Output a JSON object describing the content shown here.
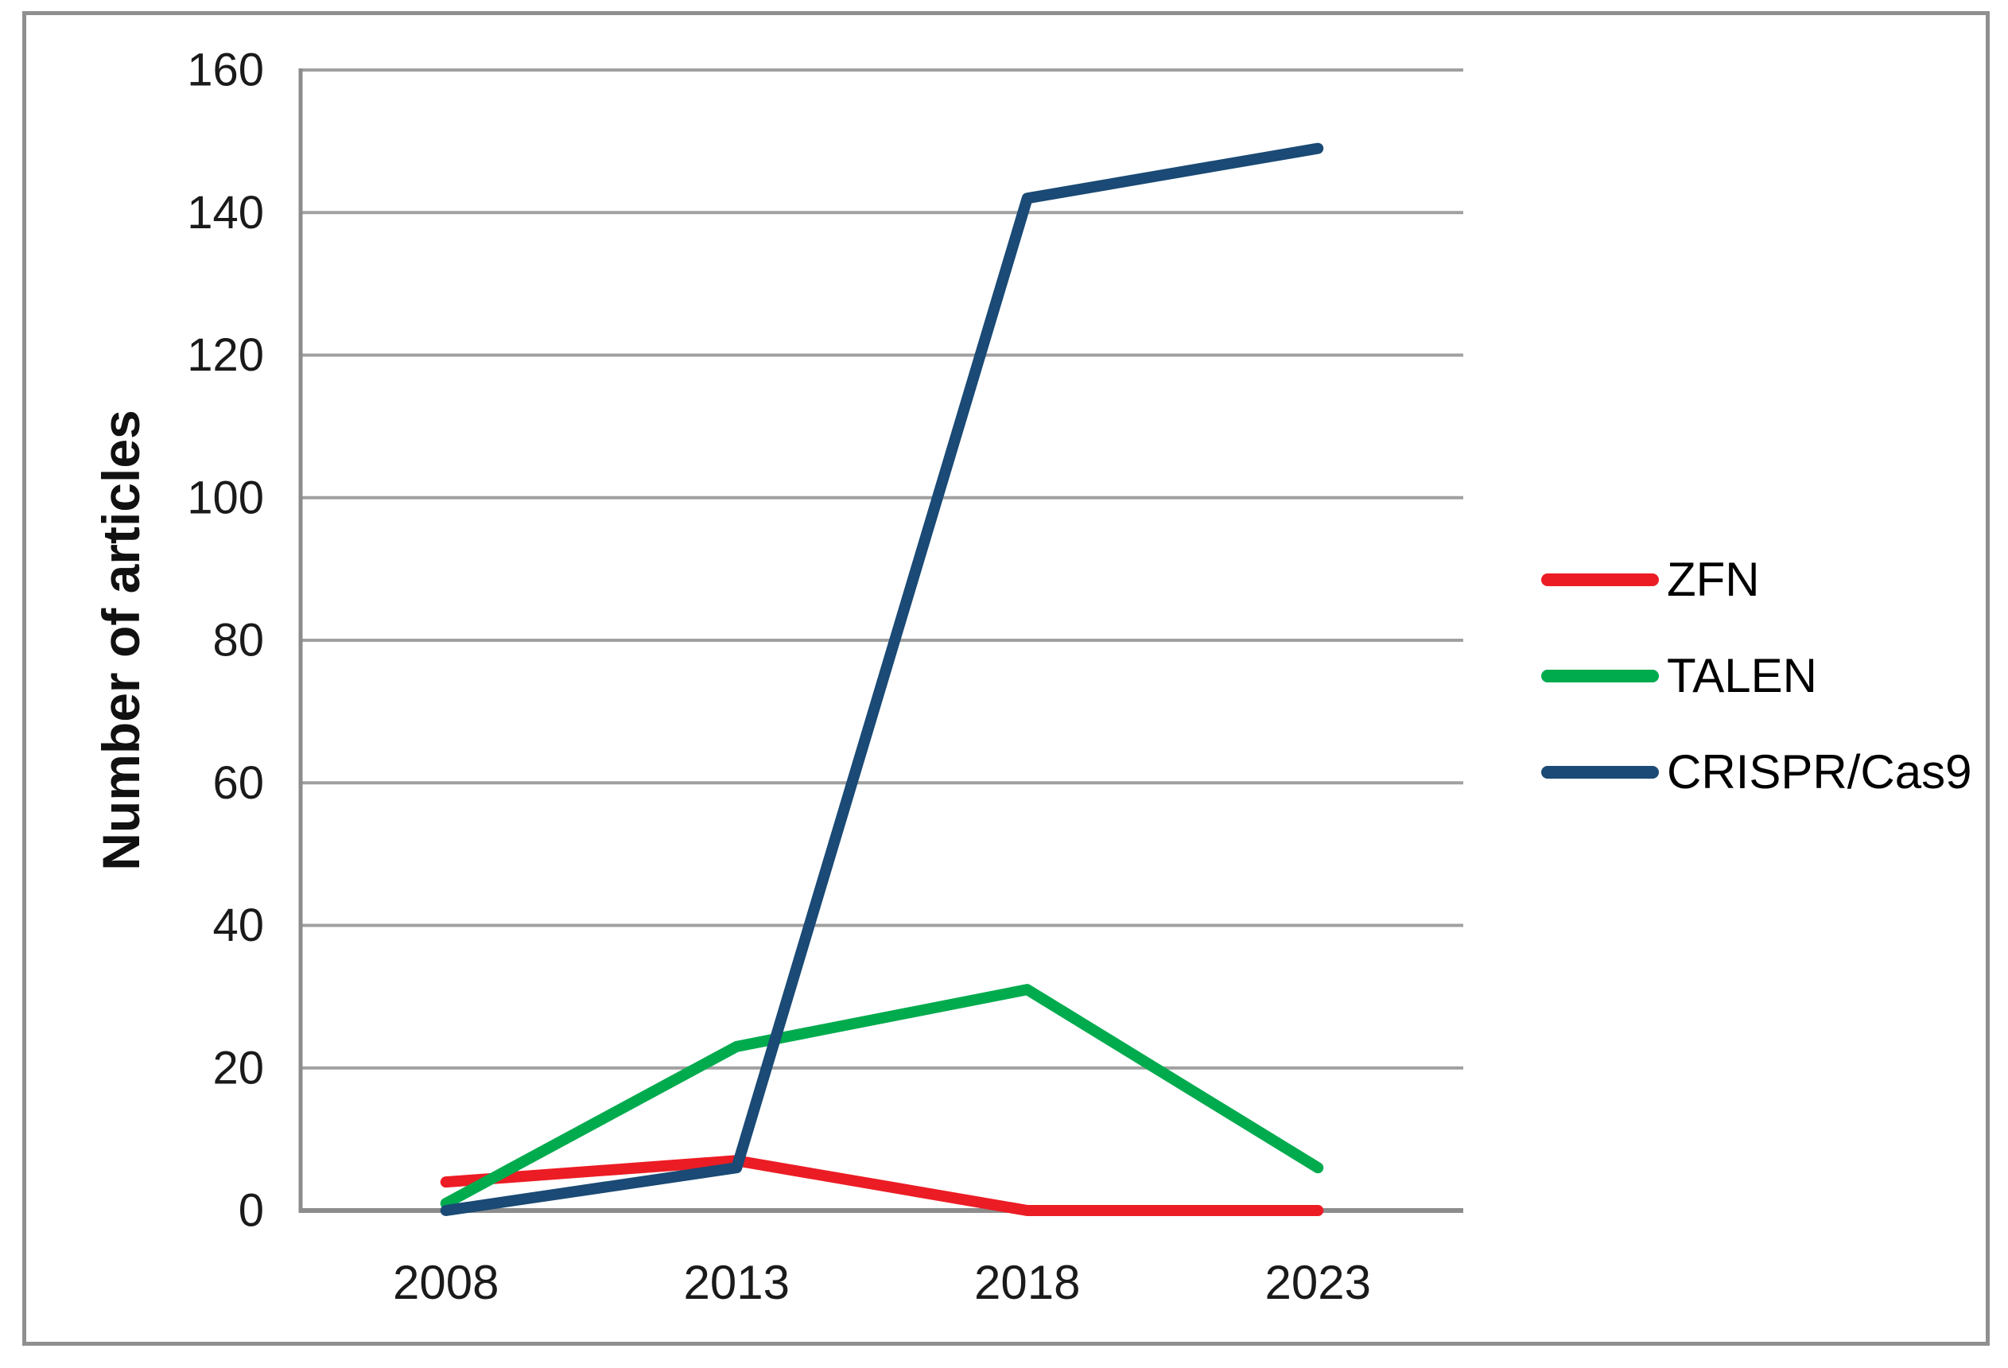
{
  "figure": {
    "background_color": "#ffffff",
    "border_color": "#8f8f8f"
  },
  "chart_data": {
    "type": "line",
    "title": "",
    "xlabel": "",
    "ylabel": "Number of articles",
    "categories": [
      "2008",
      "2013",
      "2018",
      "2023"
    ],
    "series": [
      {
        "name": "ZFN",
        "color": "#ec1c24",
        "values": [
          4,
          7,
          0,
          0
        ]
      },
      {
        "name": "TALEN",
        "color": "#00ab4e",
        "values": [
          1,
          23,
          31,
          6
        ]
      },
      {
        "name": "CRISPR/Cas9",
        "color": "#1a4a75",
        "values": [
          0,
          6,
          142,
          149
        ]
      }
    ],
    "ylim": [
      0,
      160
    ],
    "ytick_step": 20,
    "yticks": [
      0,
      20,
      40,
      60,
      80,
      100,
      120,
      140,
      160
    ],
    "grid": true,
    "legend_position": "right",
    "gridline_color": "#a0a0a0",
    "axis_color": "#8c8c8c",
    "tick_label_color": "#1a1a1a"
  }
}
